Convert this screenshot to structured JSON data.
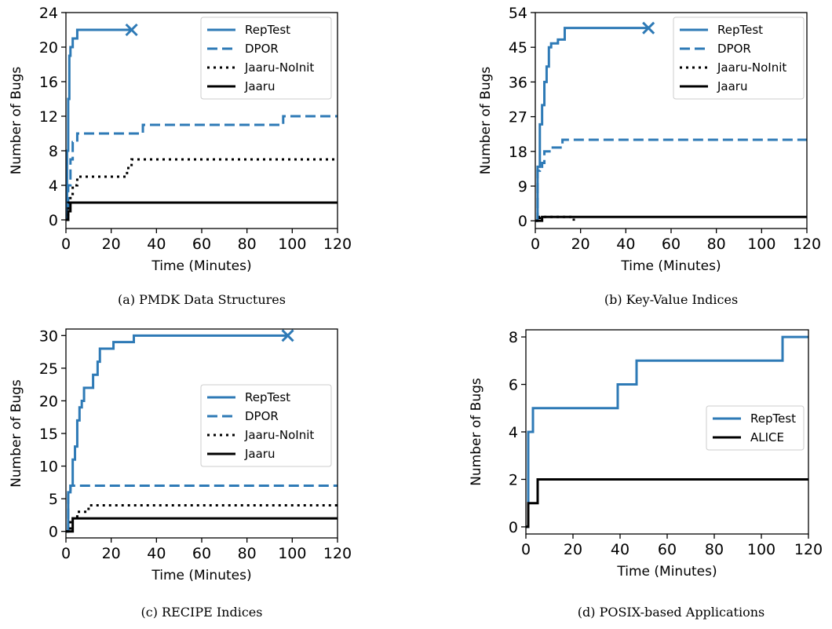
{
  "colors": {
    "blue": "#2e7ab6",
    "black": "#000000"
  },
  "chart_data": [
    {
      "type": "line",
      "caption": "(a) PMDK Data Structures",
      "xlabel": "Time (Minutes)",
      "ylabel": "Number of Bugs",
      "xlim": [
        0,
        120
      ],
      "ylim": [
        -1,
        24
      ],
      "xticks": [
        0,
        20,
        40,
        60,
        80,
        100,
        120
      ],
      "yticks": [
        0,
        4,
        8,
        12,
        16,
        20,
        24
      ],
      "legend_position": "top-right",
      "grid": false,
      "series": [
        {
          "name": "RepTest",
          "style": "solid",
          "color": "#2e7ab6",
          "x": [
            0,
            0.5,
            1,
            1.5,
            2,
            3,
            5,
            29
          ],
          "y": [
            0,
            8,
            14,
            19,
            20,
            21,
            22,
            22
          ],
          "end_marker": "x"
        },
        {
          "name": "DPOR",
          "style": "dashed",
          "color": "#2e7ab6",
          "x": [
            0,
            1,
            2,
            3,
            5,
            34,
            96,
            120
          ],
          "y": [
            0,
            4,
            7,
            9,
            10,
            11,
            12,
            12
          ]
        },
        {
          "name": "Jaaru-NoInit",
          "style": "dotted",
          "color": "#000000",
          "x": [
            0,
            1,
            2,
            3,
            5,
            25,
            27,
            29,
            120
          ],
          "y": [
            0,
            2,
            3,
            4,
            5,
            5,
            6,
            7,
            7
          ]
        },
        {
          "name": "Jaaru",
          "style": "solid",
          "color": "#000000",
          "x": [
            0,
            1,
            2,
            120
          ],
          "y": [
            0,
            1,
            2,
            2
          ]
        }
      ]
    },
    {
      "type": "line",
      "caption": "(b) Key-Value Indices",
      "xlabel": "Time (Minutes)",
      "ylabel": "Number of Bugs",
      "xlim": [
        0,
        120
      ],
      "ylim": [
        -2,
        54
      ],
      "xticks": [
        0,
        20,
        40,
        60,
        80,
        100,
        120
      ],
      "yticks": [
        0,
        9,
        18,
        27,
        36,
        45,
        54
      ],
      "legend_position": "top-right",
      "grid": false,
      "series": [
        {
          "name": "RepTest",
          "style": "solid",
          "color": "#2e7ab6",
          "x": [
            0,
            1,
            2,
            3,
            4,
            5,
            6,
            7,
            10,
            13,
            50
          ],
          "y": [
            0,
            14,
            25,
            30,
            36,
            40,
            45,
            46,
            47,
            50,
            50
          ],
          "end_marker": "x"
        },
        {
          "name": "DPOR",
          "style": "dashed",
          "color": "#2e7ab6",
          "x": [
            0,
            1,
            2,
            3,
            4,
            7,
            12,
            120
          ],
          "y": [
            0,
            13,
            14,
            15,
            18,
            19,
            21,
            21
          ]
        },
        {
          "name": "Jaaru-NoInit",
          "style": "dotted",
          "color": "#000000",
          "x": [
            0,
            2,
            17
          ],
          "y": [
            0,
            1,
            0
          ]
        },
        {
          "name": "Jaaru",
          "style": "solid",
          "color": "#000000",
          "x": [
            0,
            3,
            120
          ],
          "y": [
            0,
            1,
            1
          ]
        }
      ]
    },
    {
      "type": "line",
      "caption": "(c) RECIPE Indices",
      "xlabel": "Time (Minutes)",
      "ylabel": "Number of Bugs",
      "xlim": [
        0,
        120
      ],
      "ylim": [
        -1,
        31
      ],
      "xticks": [
        0,
        20,
        40,
        60,
        80,
        100,
        120
      ],
      "yticks": [
        0,
        5,
        10,
        15,
        20,
        25,
        30
      ],
      "legend_position": "center-right",
      "grid": false,
      "series": [
        {
          "name": "RepTest",
          "style": "solid",
          "color": "#2e7ab6",
          "x": [
            0,
            1,
            2,
            3,
            4,
            5,
            6,
            7,
            8,
            10,
            12,
            14,
            15,
            21,
            30,
            98
          ],
          "y": [
            0,
            6,
            7,
            11,
            13,
            17,
            19,
            20,
            22,
            22,
            24,
            26,
            28,
            29,
            30,
            30
          ],
          "end_marker": "x"
        },
        {
          "name": "DPOR",
          "style": "dashed",
          "color": "#2e7ab6",
          "x": [
            0,
            1,
            2,
            120
          ],
          "y": [
            0,
            6,
            7,
            7
          ]
        },
        {
          "name": "Jaaru-NoInit",
          "style": "dotted",
          "color": "#000000",
          "x": [
            0,
            2,
            5,
            10,
            120
          ],
          "y": [
            0,
            2,
            3,
            4,
            4
          ]
        },
        {
          "name": "Jaaru",
          "style": "solid",
          "color": "#000000",
          "x": [
            0,
            3,
            120
          ],
          "y": [
            0,
            2,
            2
          ]
        }
      ]
    },
    {
      "type": "line",
      "caption": "(d) POSIX-based Applications",
      "xlabel": "Time (Minutes)",
      "ylabel": "Number of Bugs",
      "xlim": [
        0,
        120
      ],
      "ylim": [
        -0.3,
        8.3
      ],
      "xticks": [
        0,
        20,
        40,
        60,
        80,
        100,
        120
      ],
      "yticks": [
        0,
        2,
        4,
        6,
        8
      ],
      "legend_position": "center-right",
      "grid": false,
      "series": [
        {
          "name": "RepTest",
          "style": "solid",
          "color": "#2e7ab6",
          "x": [
            0,
            1,
            3,
            39,
            47,
            109,
            120
          ],
          "y": [
            0,
            4,
            5,
            6,
            7,
            8,
            8
          ]
        },
        {
          "name": "ALICE",
          "style": "solid",
          "color": "#000000",
          "x": [
            0,
            1,
            5,
            120
          ],
          "y": [
            0,
            1,
            2,
            2
          ]
        }
      ]
    }
  ]
}
